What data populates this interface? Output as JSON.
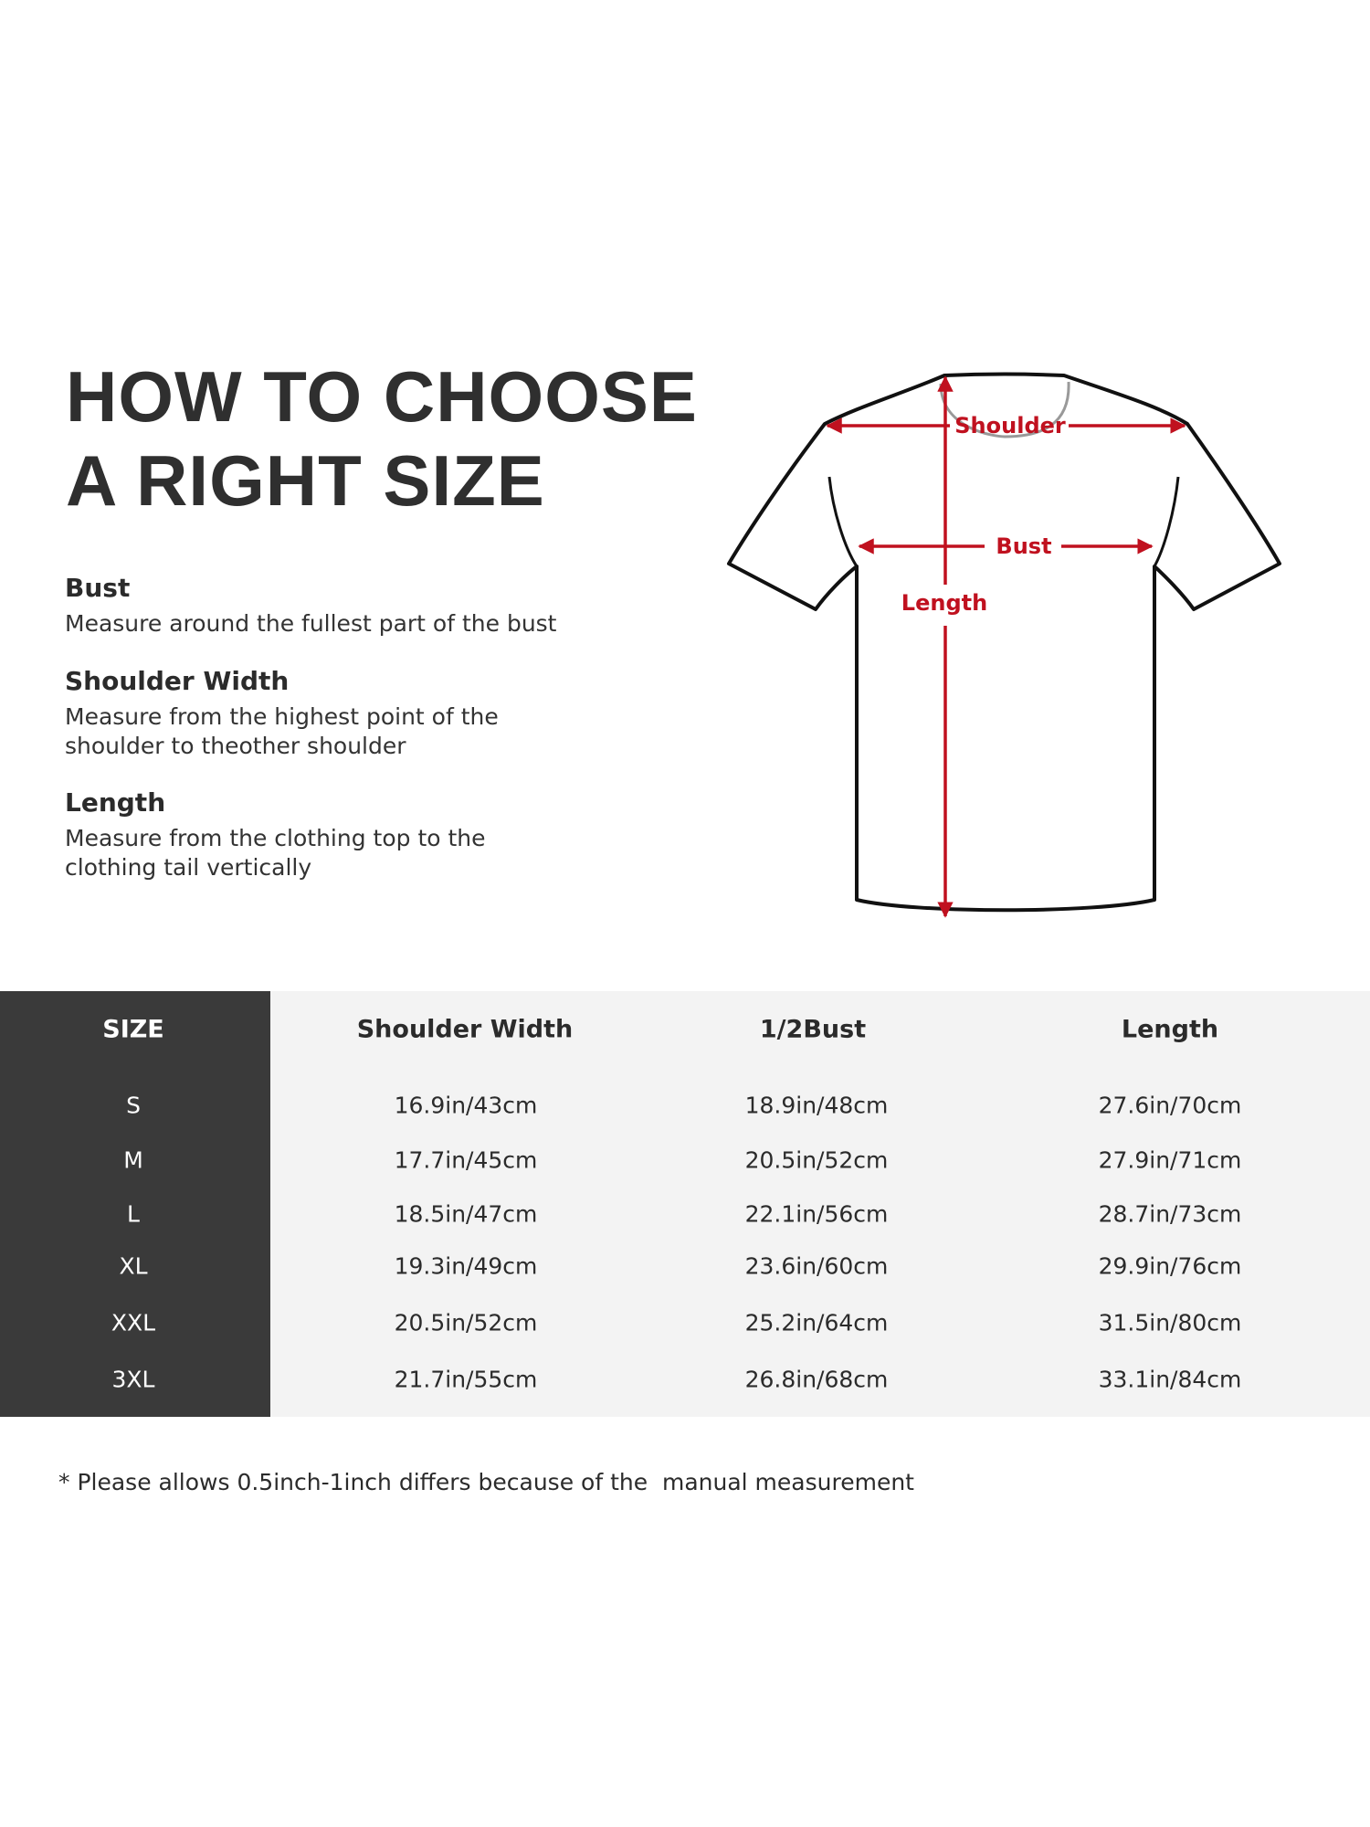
{
  "title": {
    "line1": "HOW TO CHOOSE",
    "line2": "A RIGHT SIZE"
  },
  "guide": [
    {
      "heading": "Bust",
      "text": "Measure around the fullest part of the bust"
    },
    {
      "heading": "Shoulder Width",
      "text": "Measure from the highest point of the\nshoulder to theother shoulder"
    },
    {
      "heading": "Length",
      "text": "Measure from the clothing top to the\nclothing tail vertically"
    }
  ],
  "diagram": {
    "shoulder": "Shoulder",
    "bust": "Bust",
    "length": "Length",
    "arrow_color": "#c0111f"
  },
  "table": {
    "headers": [
      "SIZE",
      "Shoulder Width",
      "1/2Bust",
      "Length"
    ],
    "rows": [
      [
        "S",
        "16.9in/43cm",
        "18.9in/48cm",
        "27.6in/70cm"
      ],
      [
        "M",
        "17.7in/45cm",
        "20.5in/52cm",
        "27.9in/71cm"
      ],
      [
        "L",
        "18.5in/47cm",
        "22.1in/56cm",
        "28.7in/73cm"
      ],
      [
        "XL",
        "19.3in/49cm",
        "23.6in/60cm",
        "29.9in/76cm"
      ],
      [
        "XXL",
        "20.5in/52cm",
        "25.2in/64cm",
        "31.5in/80cm"
      ],
      [
        "3XL",
        "21.7in/55cm",
        "26.8in/68cm",
        "33.1in/84cm"
      ]
    ]
  },
  "note": "* Please allows 0.5inch-1inch differs because of the  manual measurement"
}
